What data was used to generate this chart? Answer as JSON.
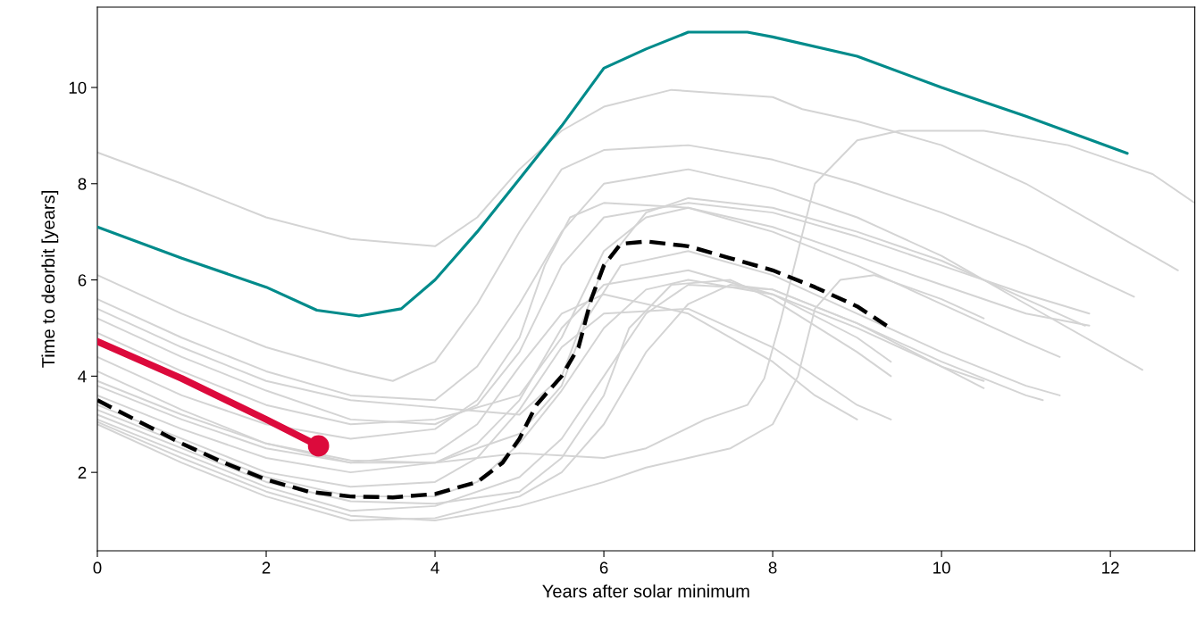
{
  "chart_data": {
    "type": "line",
    "xlabel": "Years after solar minimum",
    "ylabel": "Time to deorbit [years]",
    "xlim": [
      0,
      13
    ],
    "ylim": [
      0.37,
      11.67
    ],
    "xticks": [
      0,
      2,
      4,
      6,
      8,
      10,
      12
    ],
    "yticks": [
      2,
      4,
      6,
      8,
      10
    ],
    "grid": false,
    "legend": false,
    "series": [
      {
        "color": "#d4d4d4",
        "x": [
          0,
          1,
          2,
          3,
          4,
          4.5,
          5,
          5.5,
          6,
          6.8,
          8,
          8.35,
          9,
          10,
          11,
          12,
          12.8
        ],
        "values": [
          8.65,
          8.0,
          7.3,
          6.85,
          6.7,
          7.3,
          8.3,
          9.1,
          9.6,
          9.95,
          9.8,
          9.55,
          9.3,
          8.8,
          8.0,
          7.0,
          6.2
        ]
      },
      {
        "color": "#d4d4d4",
        "x": [
          0,
          1,
          2,
          3,
          3.5,
          4,
          4.5,
          5,
          5.5,
          6,
          7,
          8,
          9,
          10,
          11,
          12.28
        ],
        "values": [
          6.1,
          5.3,
          4.6,
          4.1,
          3.9,
          4.3,
          5.5,
          7.0,
          8.3,
          8.7,
          8.8,
          8.5,
          8.0,
          7.4,
          6.7,
          5.65
        ]
      },
      {
        "color": "#d4d4d4",
        "x": [
          0,
          1,
          2,
          3,
          4,
          4.5,
          5,
          5.5,
          6,
          7,
          8,
          9,
          10,
          11,
          12.38
        ],
        "values": [
          5.6,
          4.8,
          4.1,
          3.6,
          3.5,
          4.2,
          5.5,
          7.0,
          8.0,
          8.3,
          7.9,
          7.3,
          6.5,
          5.5,
          4.13
        ]
      },
      {
        "color": "#d4d4d4",
        "x": [
          0,
          1,
          2,
          3,
          4,
          5,
          6,
          6.5,
          7.2,
          7.7,
          7.9,
          8.1,
          8.5,
          9,
          9.5,
          10.5,
          11.5,
          12.5,
          13
        ],
        "values": [
          3.9,
          3.2,
          2.6,
          2.25,
          2.2,
          2.4,
          2.3,
          2.5,
          3.1,
          3.4,
          3.95,
          5.2,
          8.0,
          8.9,
          9.1,
          9.1,
          8.8,
          8.2,
          7.6
        ]
      },
      {
        "color": "#d4d4d4",
        "x": [
          0,
          1,
          2,
          3,
          4,
          4.5,
          5,
          5.5,
          6,
          7,
          8,
          9,
          10,
          11,
          11.75
        ],
        "values": [
          5.2,
          4.4,
          3.7,
          3.1,
          3.0,
          3.4,
          4.5,
          6.3,
          7.3,
          7.6,
          7.4,
          6.9,
          6.3,
          5.7,
          5.3
        ]
      },
      {
        "color": "#d4d4d4",
        "x": [
          0,
          1,
          2,
          3,
          4,
          5,
          5.5,
          6,
          6.5,
          7,
          8,
          9,
          10,
          11,
          11.75
        ],
        "values": [
          4.9,
          4.1,
          3.4,
          3.0,
          3.1,
          3.6,
          4.8,
          6.6,
          7.3,
          7.5,
          7.1,
          6.5,
          5.9,
          5.3,
          5.05
        ]
      },
      {
        "color": "#d4d4d4",
        "x": [
          0,
          1,
          2,
          3,
          4,
          4.5,
          5,
          5.3,
          5.6,
          6,
          7,
          8,
          9,
          10,
          11,
          11.4
        ],
        "values": [
          4.4,
          3.6,
          3.0,
          2.7,
          2.9,
          3.5,
          4.8,
          6.3,
          7.3,
          7.6,
          7.5,
          7.0,
          6.3,
          5.5,
          4.7,
          4.4
        ]
      },
      {
        "color": "#d4d4d4",
        "x": [
          0,
          1,
          2,
          3,
          4,
          5,
          5.5,
          5.8,
          6.2,
          7,
          8,
          9,
          10,
          11,
          11.4
        ],
        "values": [
          4.1,
          3.3,
          2.6,
          2.2,
          2.2,
          2.8,
          3.8,
          5.2,
          6.3,
          6.6,
          6.1,
          5.3,
          4.5,
          3.8,
          3.6
        ]
      },
      {
        "color": "#d4d4d4",
        "x": [
          0,
          1,
          2,
          3,
          4,
          4.5,
          5,
          5.5,
          6,
          6.5,
          7,
          8,
          9,
          10,
          10.5
        ],
        "values": [
          3.3,
          2.6,
          1.9,
          1.5,
          1.5,
          1.8,
          2.6,
          3.7,
          5.0,
          5.8,
          6.0,
          5.7,
          5.0,
          4.2,
          3.9
        ]
      },
      {
        "color": "#d4d4d4",
        "x": [
          0,
          1,
          2,
          3,
          4,
          5,
          5.5,
          6,
          6.5,
          7,
          8,
          9,
          10,
          11,
          11.2
        ],
        "values": [
          3.1,
          2.4,
          1.7,
          1.2,
          1.3,
          1.9,
          2.7,
          4.0,
          5.3,
          5.9,
          5.8,
          5.1,
          4.3,
          3.6,
          3.5
        ]
      },
      {
        "color": "#d4d4d4",
        "x": [
          0,
          1,
          2,
          3,
          4,
          5,
          5.5,
          6,
          6.5,
          7,
          7.5,
          8,
          9,
          10,
          10.5
        ],
        "values": [
          3.0,
          2.2,
          1.5,
          1.0,
          1.05,
          1.5,
          2.0,
          3.0,
          4.5,
          5.5,
          5.9,
          5.8,
          5.1,
          4.2,
          3.75
        ]
      },
      {
        "color": "#d4d4d4",
        "x": [
          0,
          1,
          2,
          3,
          4,
          5,
          6,
          6.5,
          7,
          7.5,
          8,
          8.3,
          8.5,
          8.8,
          9.2,
          10,
          10.5
        ],
        "values": [
          3.05,
          2.3,
          1.6,
          1.1,
          1.0,
          1.3,
          1.8,
          2.1,
          2.3,
          2.5,
          3.0,
          4.0,
          5.4,
          6.0,
          6.1,
          5.6,
          5.2
        ]
      },
      {
        "color": "#d4d4d4",
        "x": [
          0,
          1,
          2,
          3,
          4,
          4.5,
          5,
          5.5,
          6,
          7,
          8,
          9,
          9.4
        ],
        "values": [
          3.6,
          2.9,
          2.3,
          2.0,
          2.2,
          2.6,
          3.5,
          5.0,
          5.9,
          6.2,
          5.7,
          4.8,
          4.3
        ]
      },
      {
        "color": "#d4d4d4",
        "x": [
          0,
          1,
          2,
          3,
          4,
          5,
          5.5,
          6,
          6.3,
          6.8,
          7.5,
          8,
          9,
          9.4
        ],
        "values": [
          3.2,
          2.5,
          1.8,
          1.4,
          1.35,
          1.6,
          2.3,
          3.6,
          5.0,
          5.9,
          6.0,
          5.6,
          4.5,
          4.0
        ]
      },
      {
        "color": "#d4d4d4",
        "x": [
          0,
          1,
          2,
          3,
          4,
          4.5,
          5,
          5.5,
          6,
          7,
          8,
          9,
          9.4
        ],
        "values": [
          3.4,
          2.7,
          2.0,
          1.7,
          1.8,
          2.3,
          3.3,
          4.6,
          5.3,
          5.4,
          4.6,
          3.4,
          3.1
        ]
      },
      {
        "color": "#d4d4d4",
        "x": [
          0,
          1,
          2,
          3,
          4,
          4.5,
          5,
          5.5,
          6,
          7,
          8,
          8.5,
          9
        ],
        "values": [
          3.8,
          3.1,
          2.5,
          2.2,
          2.4,
          3.0,
          4.2,
          5.3,
          5.7,
          5.3,
          4.3,
          3.6,
          3.1
        ]
      },
      {
        "color": "#d4d4d4",
        "x": [
          0,
          1,
          2,
          3,
          4,
          5,
          5.5,
          6,
          6.5,
          7,
          8,
          9,
          10,
          11,
          11.7
        ],
        "values": [
          5.4,
          4.6,
          3.9,
          3.5,
          3.35,
          3.2,
          4.0,
          6.3,
          7.4,
          7.7,
          7.5,
          7.0,
          6.4,
          5.6,
          5.05
        ]
      },
      {
        "color": "#008b8b",
        "x": [
          0,
          1,
          2,
          2.6,
          3.1,
          3.6,
          4,
          4.5,
          5,
          5.5,
          6,
          6.5,
          7,
          7.7,
          8,
          9,
          10,
          11,
          12.2
        ],
        "values": [
          7.1,
          6.45,
          5.85,
          5.37,
          5.25,
          5.4,
          6.0,
          7.0,
          8.1,
          9.2,
          10.4,
          10.8,
          11.15,
          11.15,
          11.05,
          10.65,
          10.0,
          9.4,
          8.63
        ]
      },
      {
        "color": "#000000",
        "line_style": "dashed",
        "x": [
          0,
          0.5,
          1,
          1.5,
          2,
          2.5,
          3,
          3.5,
          4,
          4.5,
          4.8,
          5,
          5.2,
          5.5,
          5.7,
          5.85,
          6,
          6.2,
          6.5,
          7,
          7.5,
          8,
          8.5,
          9,
          9.35
        ],
        "values": [
          3.5,
          3.05,
          2.6,
          2.2,
          1.85,
          1.6,
          1.5,
          1.48,
          1.55,
          1.8,
          2.2,
          2.7,
          3.4,
          4.0,
          4.6,
          5.6,
          6.3,
          6.75,
          6.8,
          6.7,
          6.45,
          6.2,
          5.85,
          5.45,
          5.05
        ]
      },
      {
        "color": "#dc0a3c",
        "x": [
          0,
          1,
          2,
          2.62
        ],
        "values": [
          4.72,
          3.95,
          3.1,
          2.55
        ]
      },
      {
        "type": "scatter",
        "marker": "circle",
        "color": "#dc0a3c",
        "x": [
          2.62
        ],
        "values": [
          2.55
        ]
      }
    ]
  }
}
